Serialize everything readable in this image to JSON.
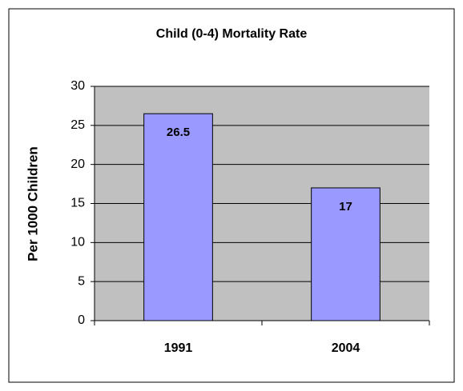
{
  "chart_data": {
    "type": "bar",
    "title": "Child (0-4) Mortality Rate",
    "y_label": "Per 1000 Children",
    "categories": [
      "1991",
      "2004"
    ],
    "values": [
      26.5,
      17
    ],
    "color": "#9999ff",
    "ylim": [
      0,
      30
    ],
    "yticks": [
      0,
      5,
      10,
      15,
      20,
      25,
      30
    ],
    "grid": true,
    "data_labels": true
  }
}
